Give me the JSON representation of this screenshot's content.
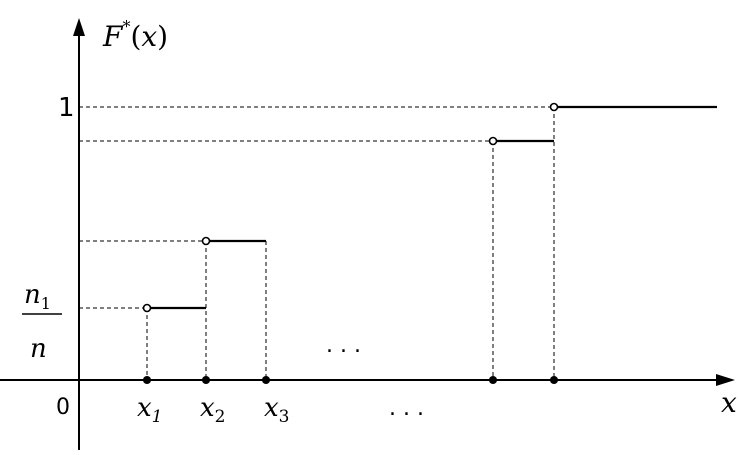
{
  "y_axis": {
    "label_main": "F",
    "label_sup": "*",
    "label_paren_open": "(",
    "label_var": "x",
    "label_paren_close": ")"
  },
  "x_axis": {
    "label": "x"
  },
  "origin_label": "0",
  "y_ticks": {
    "one": "1",
    "frac_num_main": "n",
    "frac_num_sub": "1",
    "frac_den": "n"
  },
  "x_ticks": [
    {
      "main": "x",
      "sub": "1"
    },
    {
      "main": "x",
      "sub": "2"
    },
    {
      "main": "x",
      "sub": "3"
    }
  ],
  "ellipsis_upper": ". . .",
  "ellipsis_lower": ". . ."
}
